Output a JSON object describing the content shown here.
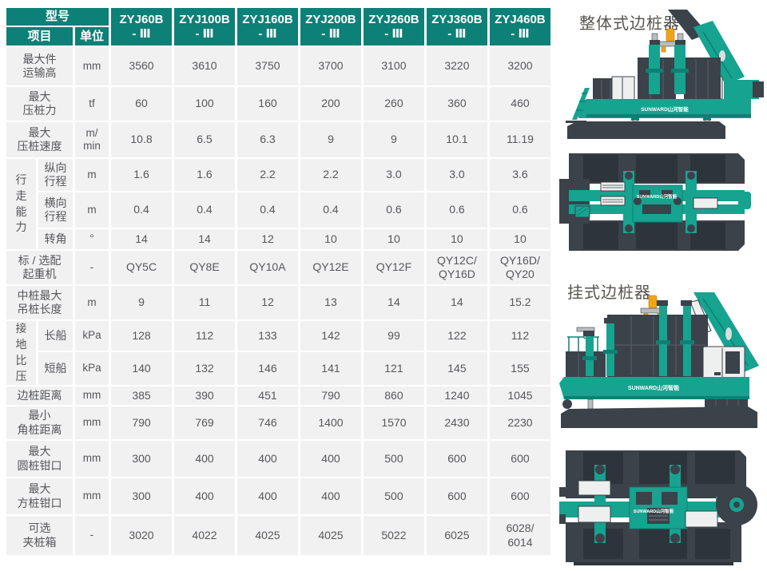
{
  "brand": "SUNWARD山河智能",
  "captions": {
    "integral": "整体式边桩器",
    "hanging": "挂式边桩器"
  },
  "colors": {
    "header_teal": "#0d8077",
    "cell_gray": "#f1f1f2",
    "text_gray": "#56575a",
    "machine_teal": "#16a390",
    "machine_dark": "#3b424a",
    "hook_orange": "#f2a31c"
  },
  "table": {
    "header": {
      "model_label": "型号",
      "item_label": "项目",
      "unit_label": "单位",
      "models": [
        {
          "name": "ZYJ60B",
          "suffix": "- Ⅲ"
        },
        {
          "name": "ZYJ100B",
          "suffix": "- Ⅲ"
        },
        {
          "name": "ZYJ160B",
          "suffix": "- Ⅲ"
        },
        {
          "name": "ZYJ200B",
          "suffix": "- Ⅲ"
        },
        {
          "name": "ZYJ260B",
          "suffix": "- Ⅲ"
        },
        {
          "name": "ZYJ360B",
          "suffix": "- Ⅲ"
        },
        {
          "name": "ZYJ460B",
          "suffix": "- Ⅲ"
        }
      ]
    },
    "rows": [
      {
        "label": "最大件\n运输高",
        "unit": "mm",
        "values": [
          "3560",
          "3610",
          "3750",
          "3700",
          "3100",
          "3220",
          "3200"
        ]
      },
      {
        "label": "最大\n压桩力",
        "unit": "tf",
        "values": [
          "60",
          "100",
          "160",
          "200",
          "260",
          "360",
          "460"
        ]
      },
      {
        "label": "最大\n压桩速度",
        "unit": "m/\nmin",
        "values": [
          "10.8",
          "6.5",
          "6.3",
          "9",
          "9",
          "10.1",
          "11.19"
        ]
      },
      {
        "group": "行走能力",
        "group_span": 3,
        "label": "纵向\n行程",
        "unit": "m",
        "values": [
          "1.6",
          "1.6",
          "2.2",
          "2.2",
          "3.0",
          "3.0",
          "3.6"
        ]
      },
      {
        "label": "横向\n行程",
        "unit": "m",
        "values": [
          "0.4",
          "0.4",
          "0.4",
          "0.4",
          "0.6",
          "0.6",
          "0.6"
        ]
      },
      {
        "label": "转角",
        "unit": "°",
        "values": [
          "14",
          "14",
          "12",
          "10",
          "10",
          "10",
          "10"
        ]
      },
      {
        "label": "标 / 选配\n起重机",
        "unit": "-",
        "values": [
          "QY5C",
          "QY8E",
          "QY10A",
          "QY12E",
          "QY12F",
          "QY12C/\nQY16D",
          "QY16D/\nQY20"
        ]
      },
      {
        "label": "中桩最大\n吊桩长度",
        "unit": "m",
        "values": [
          "9",
          "11",
          "12",
          "13",
          "14",
          "14",
          "15.2"
        ]
      },
      {
        "group": "接地比压",
        "group_span": 2,
        "label": "长船",
        "unit": "kPa",
        "values": [
          "128",
          "112",
          "133",
          "142",
          "99",
          "122",
          "112"
        ]
      },
      {
        "label": "短船",
        "unit": "kPa",
        "values": [
          "140",
          "132",
          "146",
          "141",
          "121",
          "145",
          "155"
        ]
      },
      {
        "label": "边桩距离",
        "unit": "mm",
        "values": [
          "385",
          "390",
          "451",
          "790",
          "860",
          "1240",
          "1045"
        ]
      },
      {
        "label": "最小\n角桩距离",
        "unit": "mm",
        "values": [
          "790",
          "769",
          "746",
          "1400",
          "1570",
          "2430",
          "2230"
        ]
      },
      {
        "label": "最大\n圆桩钳口",
        "unit": "mm",
        "values": [
          "300",
          "400",
          "400",
          "400",
          "500",
          "600",
          "600"
        ]
      },
      {
        "label": "最大\n方桩钳口",
        "unit": "mm",
        "values": [
          "300",
          "400",
          "400",
          "400",
          "500",
          "600",
          "600"
        ]
      },
      {
        "label": "可选\n夹桩箱",
        "unit": "-",
        "values": [
          "3020",
          "4022",
          "4025",
          "4025",
          "5022",
          "6025",
          "6028/\n6014"
        ]
      }
    ]
  }
}
